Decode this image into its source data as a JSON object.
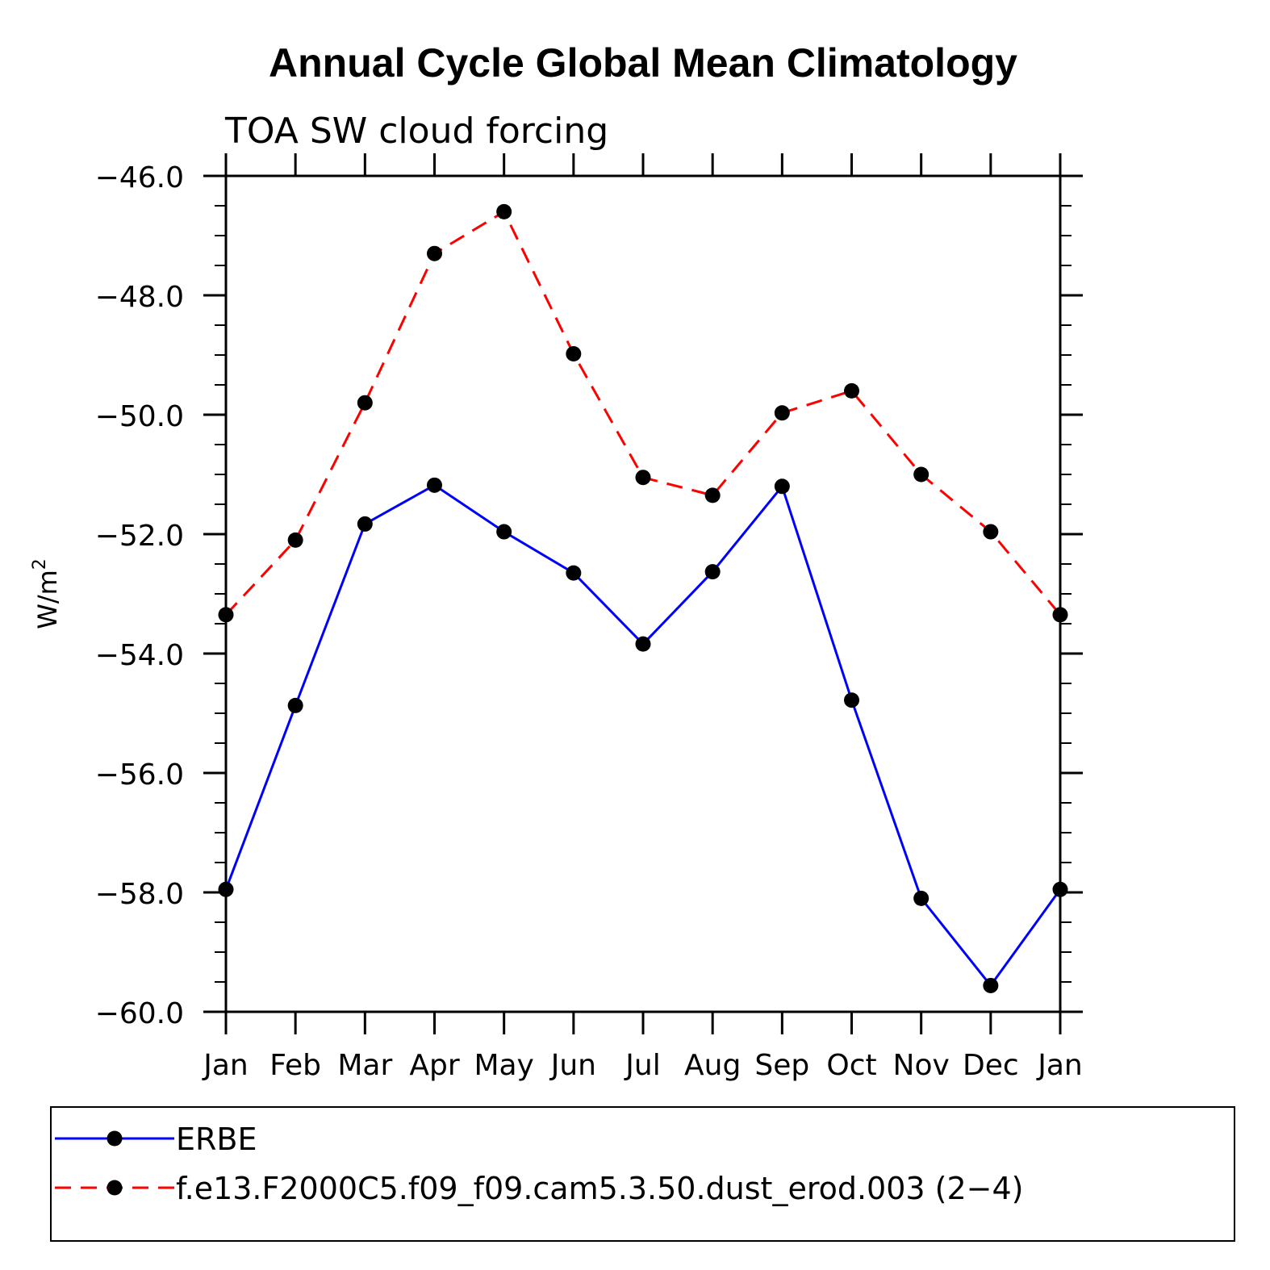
{
  "chart_data": {
    "type": "line",
    "title": "Annual Cycle Global Mean Climatology",
    "subtitle": "TOA SW cloud forcing",
    "ylabel": "W/m",
    "ylabel_sup": "2",
    "ylim": [
      -60.0,
      -46.0
    ],
    "yticks": [
      -46.0,
      -48.0,
      -50.0,
      -52.0,
      -54.0,
      -56.0,
      -58.0,
      -60.0
    ],
    "ytick_labels": [
      "−46.0",
      "−48.0",
      "−50.0",
      "−52.0",
      "−54.0",
      "−56.0",
      "−58.0",
      "−60.0"
    ],
    "categories": [
      "Jan",
      "Feb",
      "Mar",
      "Apr",
      "May",
      "Jun",
      "Jul",
      "Aug",
      "Sep",
      "Oct",
      "Nov",
      "Dec",
      "Jan"
    ],
    "series": [
      {
        "name": "ERBE",
        "color": "#0000ff",
        "dash": "solid",
        "marker": "filled-circle",
        "values": [
          -57.95,
          -54.87,
          -51.83,
          -51.18,
          -51.96,
          -52.65,
          -53.84,
          -52.63,
          -51.2,
          -54.78,
          -58.1,
          -59.56,
          -57.95
        ]
      },
      {
        "name": "f.e13.F2000C5.f09_f09.cam5.3.50.dust_erod.003 (2−4)",
        "color": "#ff0000",
        "dash": "dashed",
        "marker": "filled-circle",
        "values": [
          -53.35,
          -52.1,
          -49.8,
          -47.3,
          -46.6,
          -48.98,
          -51.05,
          -51.35,
          -49.97,
          -49.6,
          -51.0,
          -51.96,
          -53.35
        ]
      }
    ],
    "grid": false,
    "legend_position": "bottom"
  }
}
